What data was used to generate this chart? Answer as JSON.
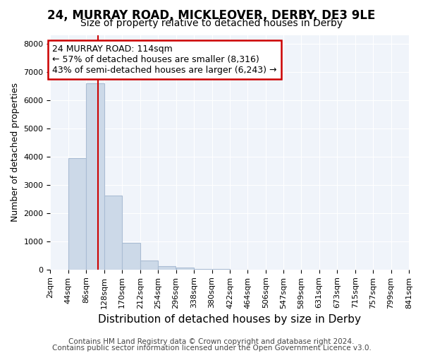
{
  "title1": "24, MURRAY ROAD, MICKLEOVER, DERBY, DE3 9LE",
  "title2": "Size of property relative to detached houses in Derby",
  "xlabel": "Distribution of detached houses by size in Derby",
  "ylabel": "Number of detached properties",
  "footer1": "Contains HM Land Registry data © Crown copyright and database right 2024.",
  "footer2": "Contains public sector information licensed under the Open Government Licence v3.0.",
  "annotation_title": "24 MURRAY ROAD: 114sqm",
  "annotation_line1": "← 57% of detached houses are smaller (8,316)",
  "annotation_line2": "43% of semi-detached houses are larger (6,243) →",
  "property_sqm": 114,
  "bar_edges": [
    2,
    44,
    86,
    128,
    170,
    212,
    254,
    296,
    338,
    380,
    422,
    464,
    506,
    547,
    589,
    631,
    673,
    715,
    757,
    799,
    841
  ],
  "bar_heights": [
    0,
    3950,
    6600,
    2620,
    950,
    330,
    120,
    60,
    30,
    15,
    5,
    0,
    0,
    0,
    0,
    0,
    0,
    0,
    0,
    0
  ],
  "bar_color": "#ccd9e8",
  "bar_edge_color": "#aabdd4",
  "vline_color": "#cc0000",
  "vline_x": 114,
  "ylim": [
    0,
    8300
  ],
  "yticks": [
    0,
    1000,
    2000,
    3000,
    4000,
    5000,
    6000,
    7000,
    8000
  ],
  "bg_color": "#ffffff",
  "plot_bg_color": "#f0f4fa",
  "grid_color": "#ffffff",
  "title1_fontsize": 12,
  "title2_fontsize": 10,
  "xlabel_fontsize": 11,
  "ylabel_fontsize": 9,
  "tick_fontsize": 8,
  "annotation_fontsize": 9,
  "footer_fontsize": 7.5
}
